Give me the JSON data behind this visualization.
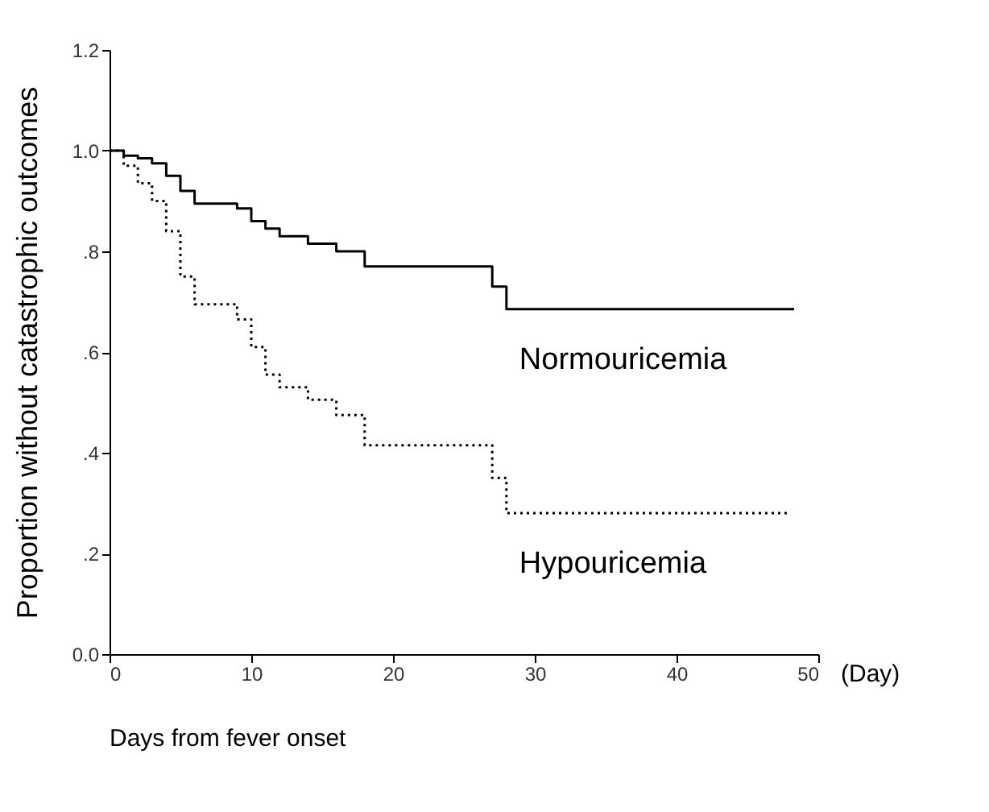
{
  "chart_data": {
    "type": "step",
    "xlabel": "Days from fever onset",
    "ylabel": "Proportion without catastrophic outcomes",
    "series": [
      {
        "name": "Normouricemia",
        "color": "#000000",
        "line_style": "solid",
        "x": [
          0,
          1,
          2,
          3,
          4,
          5,
          6,
          9,
          10,
          11,
          12,
          14,
          16,
          18,
          27,
          28,
          48.3
        ],
        "values": [
          1.0,
          0.99,
          0.985,
          0.975,
          0.95,
          0.92,
          0.895,
          0.885,
          0.86,
          0.845,
          0.83,
          0.815,
          0.8,
          0.77,
          0.73,
          0.685,
          0.685
        ]
      },
      {
        "name": "Hypouricemia",
        "color": "#000000",
        "line_style": "dotted",
        "x": [
          0,
          1,
          2,
          3,
          4,
          5,
          6,
          9,
          10,
          11,
          12,
          14,
          16,
          18,
          27,
          28,
          48
        ],
        "values": [
          1.0,
          0.97,
          0.935,
          0.9,
          0.84,
          0.75,
          0.695,
          0.665,
          0.61,
          0.555,
          0.53,
          0.505,
          0.475,
          0.415,
          0.35,
          0.28,
          0.28
        ]
      }
    ],
    "xlim": [
      0,
      50
    ],
    "xticks": [
      0,
      10,
      20,
      30,
      40,
      50
    ],
    "ylim": [
      0,
      1.2
    ],
    "yticks": [
      {
        "value": 0,
        "label": "0.0"
      },
      {
        "value": 0.2,
        "label": ".2"
      },
      {
        "value": 0.4,
        "label": ".4"
      },
      {
        "value": 0.6,
        "label": ".6"
      },
      {
        "value": 0.8,
        "label": ".8"
      },
      {
        "value": 1.0,
        "label": "1.0"
      },
      {
        "value": 1.2,
        "label": "1.2"
      }
    ],
    "annotations": [
      "(Day)"
    ],
    "grid": false,
    "marker": "none"
  }
}
